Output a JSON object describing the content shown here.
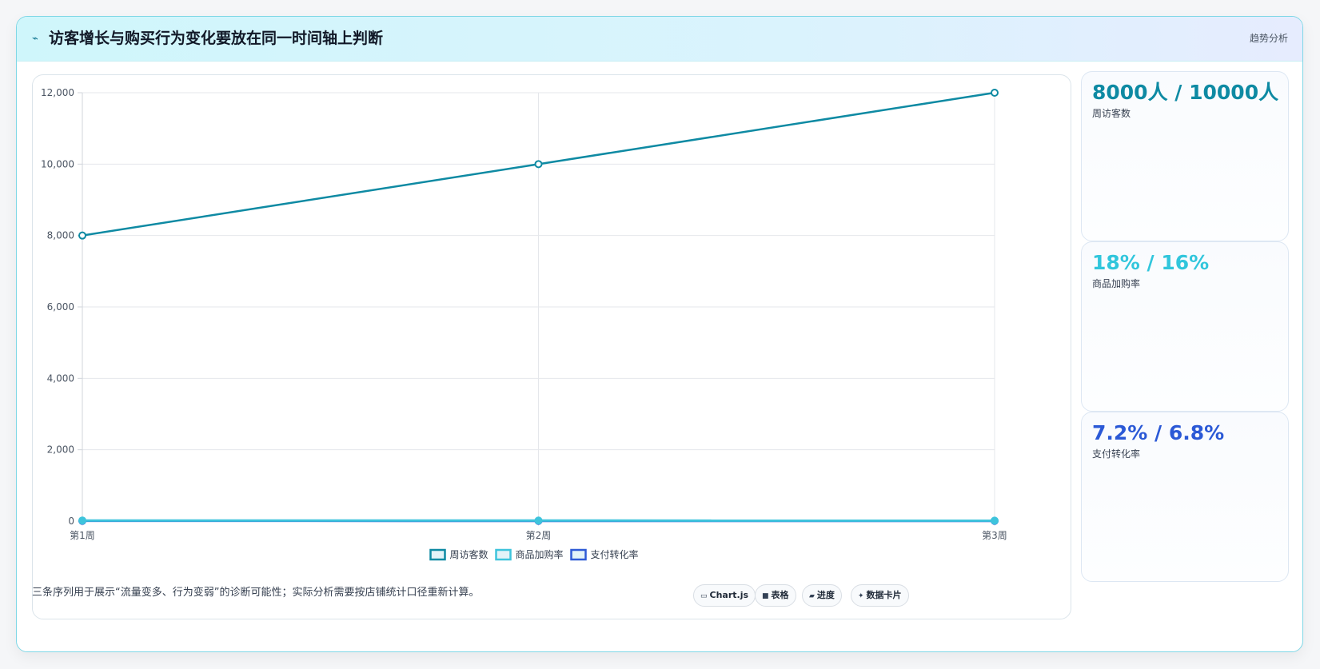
{
  "header": {
    "icon": "trend-icon",
    "title": "访客增长与购买行为变化要放在同一时间轴上判断",
    "badge": "趋势分析"
  },
  "chart_data": {
    "type": "line",
    "title": "",
    "xlabel": "",
    "ylabel": "",
    "categories": [
      "第1周",
      "第2周",
      "第3周"
    ],
    "ylim": [
      0,
      12000
    ],
    "yticks": [
      "0",
      "2,000",
      "4,000",
      "6,000",
      "8,000",
      "10,000",
      "12,000"
    ],
    "grid": true,
    "legend": "bottom-center",
    "series": [
      {
        "name": "周访客数",
        "values": [
          8000,
          10000,
          12000
        ],
        "color": "#0e8aa3"
      },
      {
        "name": "商品加购率",
        "values": [
          18,
          16,
          14
        ],
        "color": "#3ec4dc"
      },
      {
        "name": "支付转化率",
        "values": [
          7.2,
          6.8,
          6.4
        ],
        "color": "#2f5bd6"
      }
    ]
  },
  "stats": [
    {
      "value": "8000人 / 10000人",
      "label": "周访客数",
      "color": "#0e8aa3"
    },
    {
      "value": "18% / 16%",
      "label": "商品加购率",
      "color": "#31c6dc"
    },
    {
      "value": "7.2% / 6.8%",
      "label": "支付转化率",
      "color": "#2b59d6"
    }
  ],
  "footer": {
    "note": "三条序列用于展示“流量变多、行为变弱”的诊断可能性；实际分析需要按店铺统计口径重新计算。",
    "chips": [
      {
        "icon": "chart-icon",
        "label": "Chart.js"
      },
      {
        "icon": "table-icon",
        "label": "表格"
      },
      {
        "icon": "progress-icon",
        "label": "进度"
      },
      {
        "icon": "card-icon",
        "label": "数据卡片"
      }
    ]
  }
}
